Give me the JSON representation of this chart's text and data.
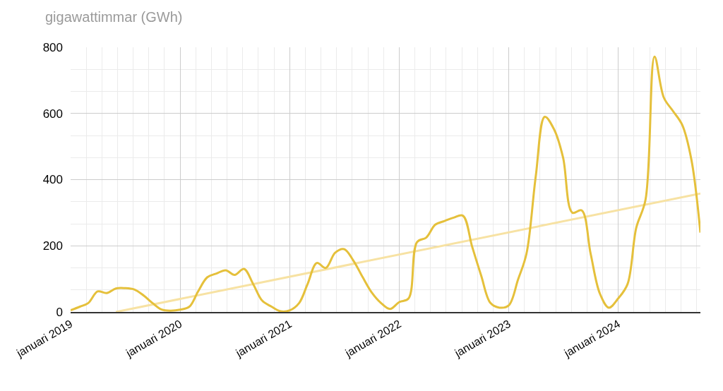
{
  "chart_data": {
    "type": "line",
    "ylabel": "gigawattimmar (GWh)",
    "x": [
      "2019-01",
      "2019-02",
      "2019-03",
      "2019-04",
      "2019-05",
      "2019-06",
      "2019-07",
      "2019-08",
      "2019-09",
      "2019-10",
      "2019-11",
      "2019-12",
      "2020-01",
      "2020-02",
      "2020-03",
      "2020-04",
      "2020-05",
      "2020-06",
      "2020-07",
      "2020-08",
      "2020-09",
      "2020-10",
      "2020-11",
      "2020-12",
      "2021-01",
      "2021-02",
      "2021-03",
      "2021-04",
      "2021-05",
      "2021-06",
      "2021-07",
      "2021-08",
      "2021-09",
      "2021-10",
      "2021-11",
      "2021-12",
      "2022-01",
      "2022-02",
      "2022-03",
      "2022-04",
      "2022-05",
      "2022-06",
      "2022-07",
      "2022-08",
      "2022-09",
      "2022-10",
      "2022-11",
      "2022-12",
      "2023-01",
      "2023-02",
      "2023-03",
      "2023-04",
      "2023-05",
      "2023-06",
      "2023-07",
      "2023-08",
      "2023-09",
      "2023-10",
      "2023-11",
      "2023-12",
      "2024-01",
      "2024-02",
      "2024-03",
      "2024-04",
      "2024-05",
      "2024-06",
      "2024-07",
      "2024-08",
      "2024-09",
      "2024-10"
    ],
    "series": [
      {
        "color": "#e5c03b",
        "values": [
          5,
          16,
          27,
          62,
          57,
          71,
          72,
          68,
          50,
          27,
          7,
          4,
          7,
          16,
          62,
          105,
          116,
          126,
          112,
          130,
          84,
          34,
          16,
          2,
          5,
          27,
          84,
          148,
          133,
          179,
          190,
          155,
          105,
          59,
          27,
          9,
          30,
          41,
          211,
          225,
          264,
          275,
          285,
          291,
          197,
          110,
          27,
          13,
          20,
          98,
          176,
          410,
          590,
          552,
          467,
          300,
          307,
          176,
          55,
          13,
          41,
          84,
          254,
          339,
          772,
          648,
          608,
          566,
          460,
          240
        ]
      },
      {
        "type": "line",
        "color": "#f7e2a3",
        "x": [
          "2019-06",
          "2024-10"
        ],
        "values": [
          0,
          358
        ]
      }
    ],
    "xlim": [
      "2019-01",
      "2024-10"
    ],
    "xticks": [
      {
        "value": "2019-01",
        "label": "januari 2019"
      },
      {
        "value": "2020-01",
        "label": "januari 2020"
      },
      {
        "value": "2021-01",
        "label": "januari 2021"
      },
      {
        "value": "2022-01",
        "label": "januari 2022"
      },
      {
        "value": "2023-01",
        "label": "januari 2023"
      },
      {
        "value": "2024-01",
        "label": "januari 2024"
      }
    ],
    "ylim": [
      0,
      800
    ],
    "yticks": [
      0,
      200,
      400,
      600,
      800
    ],
    "grid": true
  }
}
